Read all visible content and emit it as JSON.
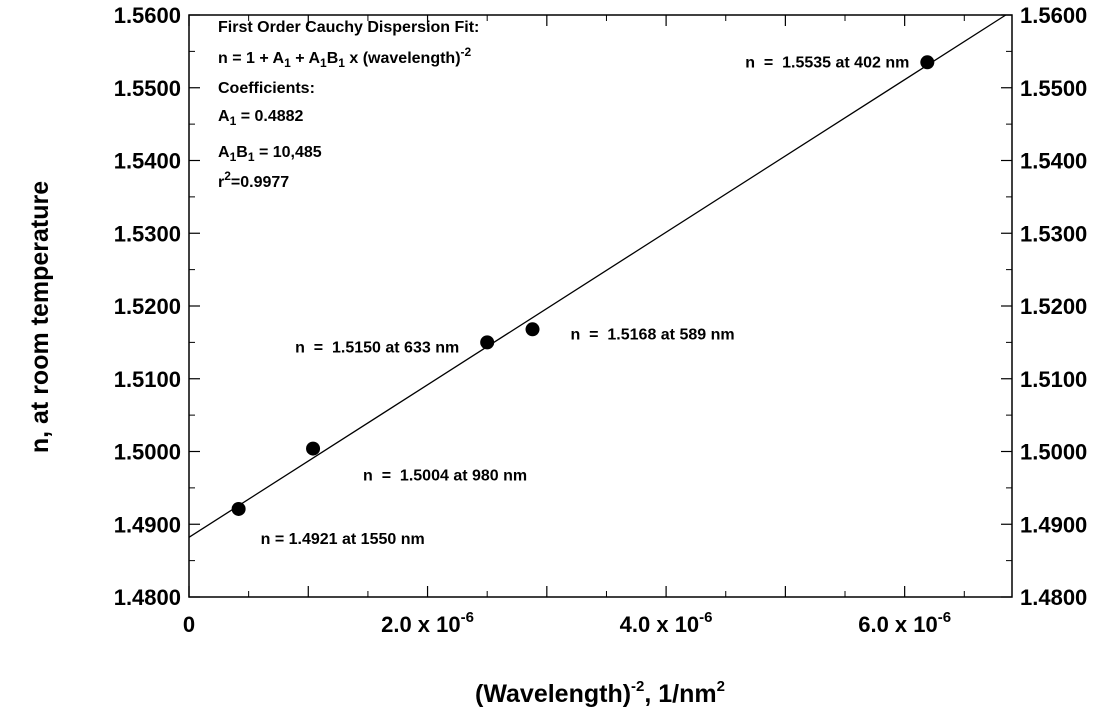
{
  "chart_data": {
    "type": "scatter",
    "xlabel": {
      "main": "(Wavelength)",
      "sup": "-2",
      "tail": ",  1/nm",
      "sup2": "2"
    },
    "ylabel": "n, at room temperature",
    "xlim": [
      0,
      6.9e-06
    ],
    "ylim": [
      1.48,
      1.56
    ],
    "x_tick_labels": [
      {
        "value": 0,
        "mantissa": "0",
        "exp": ""
      },
      {
        "value": 2e-06,
        "mantissa": "2.0 x 10",
        "exp": "-6"
      },
      {
        "value": 4e-06,
        "mantissa": "4.0 x 10",
        "exp": "-6"
      },
      {
        "value": 6e-06,
        "mantissa": "6.0 x 10",
        "exp": "-6"
      }
    ],
    "y_ticks": [
      1.48,
      1.49,
      1.5,
      1.51,
      1.52,
      1.53,
      1.54,
      1.55,
      1.56
    ],
    "y_tick_labels": [
      "1.4800",
      "1.4900",
      "1.5000",
      "1.5100",
      "1.5200",
      "1.5300",
      "1.5400",
      "1.5500",
      "1.5600"
    ],
    "points": [
      {
        "wavelength_nm": 1550,
        "x": 4.16e-07,
        "y": 1.4921,
        "label": "n = 1.4921 at 1550 nm"
      },
      {
        "wavelength_nm": 980,
        "x": 1.04e-06,
        "y": 1.5004,
        "label": "n  =  1.5004 at 980 nm"
      },
      {
        "wavelength_nm": 633,
        "x": 2.5e-06,
        "y": 1.515,
        "label": "n  =  1.5150 at 633 nm"
      },
      {
        "wavelength_nm": 589,
        "x": 2.88e-06,
        "y": 1.5168,
        "label": "n  =  1.5168 at 589 nm"
      },
      {
        "wavelength_nm": 402,
        "x": 6.19e-06,
        "y": 1.5535,
        "label": "n  =  1.5535 at 402 nm"
      }
    ],
    "fit": {
      "intercept": 1.4882,
      "slope": 10485,
      "lines": {
        "title": "First Order Cauchy Dispersion Fit:",
        "equation": "n = 1 + A1 + A1B1 x  (wavelength)-2",
        "coefficients": "Coefficients:",
        "a1": "A1 = 0.4882",
        "a1b1": "A1B1 = 10,485",
        "r2": "r2=0.9977"
      }
    },
    "grid": false,
    "right_axis_mirror": true
  }
}
